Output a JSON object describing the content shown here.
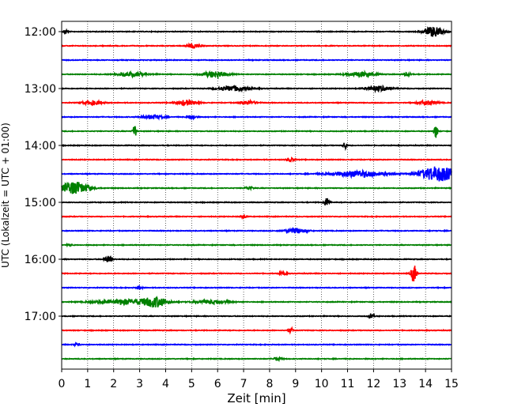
{
  "chart_data": {
    "type": "line",
    "chart_kind": "helicorder",
    "title": "",
    "xlabel": "Zeit  [min]",
    "ylabel": "UTC (Lokalzeit = UTC + 01:00)",
    "xlim": [
      0,
      15
    ],
    "x_ticks": [
      0,
      1,
      2,
      3,
      4,
      5,
      6,
      7,
      8,
      9,
      10,
      11,
      12,
      13,
      14,
      15
    ],
    "x_tick_labels": [
      "0",
      "1",
      "2",
      "3",
      "4",
      "5",
      "6",
      "7",
      "8",
      "9",
      "10",
      "11",
      "12",
      "13",
      "14",
      "15"
    ],
    "y_tick_labels": [
      "12:00",
      "13:00",
      "14:00",
      "15:00",
      "16:00",
      "17:00"
    ],
    "y_tick_rows": [
      0,
      4,
      8,
      12,
      16,
      20
    ],
    "trace_start_times": [
      "12:00",
      "12:15",
      "12:30",
      "12:45",
      "13:00",
      "13:15",
      "13:30",
      "13:45",
      "14:00",
      "14:15",
      "14:30",
      "14:45",
      "15:00",
      "15:15",
      "15:30",
      "15:45",
      "16:00",
      "16:15",
      "16:30",
      "16:45",
      "17:00",
      "17:15",
      "17:30",
      "17:45"
    ],
    "trace_minutes": 15,
    "trace_colors": [
      "#000000",
      "#ff0000",
      "#0000ff",
      "#008000"
    ],
    "grid": {
      "vertical": true,
      "style": "dotted"
    },
    "events": [
      {
        "trace": 0,
        "t": 14.3,
        "amp": 1.6,
        "dur": 0.7
      },
      {
        "trace": 0,
        "t": 0.15,
        "amp": 0.8,
        "dur": 0.15
      },
      {
        "trace": 1,
        "t": 5.1,
        "amp": 0.8,
        "dur": 0.5
      },
      {
        "trace": 3,
        "t": 2.7,
        "amp": 0.6,
        "dur": 1.2
      },
      {
        "trace": 3,
        "t": 5.9,
        "amp": 1.0,
        "dur": 0.9
      },
      {
        "trace": 3,
        "t": 11.5,
        "amp": 0.8,
        "dur": 1.0
      },
      {
        "trace": 3,
        "t": 13.3,
        "amp": 0.6,
        "dur": 0.3
      },
      {
        "trace": 4,
        "t": 6.6,
        "amp": 0.8,
        "dur": 1.2
      },
      {
        "trace": 4,
        "t": 12.2,
        "amp": 0.8,
        "dur": 0.9
      },
      {
        "trace": 5,
        "t": 1.2,
        "amp": 0.7,
        "dur": 0.7
      },
      {
        "trace": 5,
        "t": 4.8,
        "amp": 0.8,
        "dur": 0.8
      },
      {
        "trace": 5,
        "t": 7.2,
        "amp": 0.6,
        "dur": 0.6
      },
      {
        "trace": 5,
        "t": 14.1,
        "amp": 0.7,
        "dur": 0.7
      },
      {
        "trace": 6,
        "t": 3.5,
        "amp": 0.6,
        "dur": 0.8
      },
      {
        "trace": 6,
        "t": 5.0,
        "amp": 0.7,
        "dur": 0.3
      },
      {
        "trace": 7,
        "t": 2.8,
        "amp": 2.6,
        "dur": 0.12
      },
      {
        "trace": 7,
        "t": 14.4,
        "amp": 2.6,
        "dur": 0.12
      },
      {
        "trace": 8,
        "t": 10.9,
        "amp": 1.4,
        "dur": 0.12
      },
      {
        "trace": 9,
        "t": 8.8,
        "amp": 0.6,
        "dur": 0.3
      },
      {
        "trace": 10,
        "t": 11.4,
        "amp": 1.0,
        "dur": 2.0
      },
      {
        "trace": 10,
        "t": 14.5,
        "amp": 2.4,
        "dur": 1.4
      },
      {
        "trace": 11,
        "t": 0.5,
        "amp": 2.0,
        "dur": 1.1
      },
      {
        "trace": 11,
        "t": 7.2,
        "amp": 0.5,
        "dur": 0.3
      },
      {
        "trace": 12,
        "t": 10.2,
        "amp": 1.4,
        "dur": 0.2
      },
      {
        "trace": 13,
        "t": 7.0,
        "amp": 0.6,
        "dur": 0.2
      },
      {
        "trace": 14,
        "t": 9.0,
        "amp": 0.8,
        "dur": 0.8
      },
      {
        "trace": 15,
        "t": 0.3,
        "amp": 0.5,
        "dur": 0.15
      },
      {
        "trace": 16,
        "t": 1.8,
        "amp": 1.0,
        "dur": 0.3
      },
      {
        "trace": 17,
        "t": 13.55,
        "amp": 3.0,
        "dur": 0.2
      },
      {
        "trace": 17,
        "t": 8.5,
        "amp": 0.6,
        "dur": 0.25
      },
      {
        "trace": 18,
        "t": 3.0,
        "amp": 0.5,
        "dur": 0.2
      },
      {
        "trace": 19,
        "t": 2.5,
        "amp": 0.8,
        "dur": 2.2
      },
      {
        "trace": 19,
        "t": 3.6,
        "amp": 1.4,
        "dur": 0.9
      },
      {
        "trace": 19,
        "t": 5.8,
        "amp": 0.6,
        "dur": 1.2
      },
      {
        "trace": 20,
        "t": 11.9,
        "amp": 0.8,
        "dur": 0.2
      },
      {
        "trace": 21,
        "t": 8.8,
        "amp": 0.8,
        "dur": 0.2
      },
      {
        "trace": 22,
        "t": 0.6,
        "amp": 0.5,
        "dur": 0.2
      },
      {
        "trace": 23,
        "t": 8.3,
        "amp": 0.5,
        "dur": 0.3
      }
    ]
  }
}
